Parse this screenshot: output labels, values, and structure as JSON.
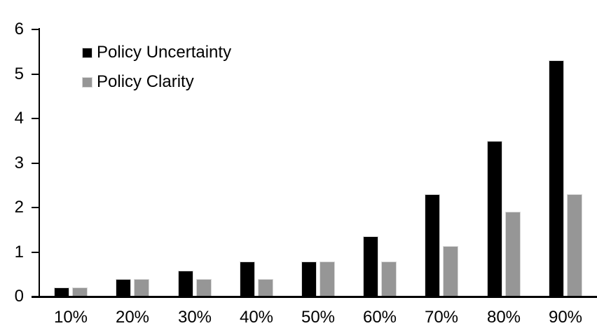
{
  "chart_data": {
    "type": "bar",
    "title": "",
    "xlabel": "",
    "ylabel": "",
    "categories": [
      "10%",
      "20%",
      "30%",
      "40%",
      "50%",
      "60%",
      "70%",
      "80%",
      "90%"
    ],
    "series": [
      {
        "name": "Policy Uncertainty",
        "color": "#000000",
        "values": [
          0.2,
          0.4,
          0.58,
          0.78,
          0.79,
          1.35,
          2.3,
          3.5,
          5.3
        ]
      },
      {
        "name": "Policy Clarity",
        "color": "#969696",
        "values": [
          0.2,
          0.4,
          0.4,
          0.4,
          0.78,
          0.78,
          1.14,
          1.9,
          2.3
        ]
      }
    ],
    "ylim": [
      0,
      6
    ],
    "yticks": [
      0,
      1,
      2,
      3,
      4,
      5,
      6
    ],
    "grid": false,
    "legend_position": "top-left-inside",
    "axis_color": "#000000",
    "bar_border_color": "#d9d9d9",
    "background_color": "#ffffff"
  }
}
